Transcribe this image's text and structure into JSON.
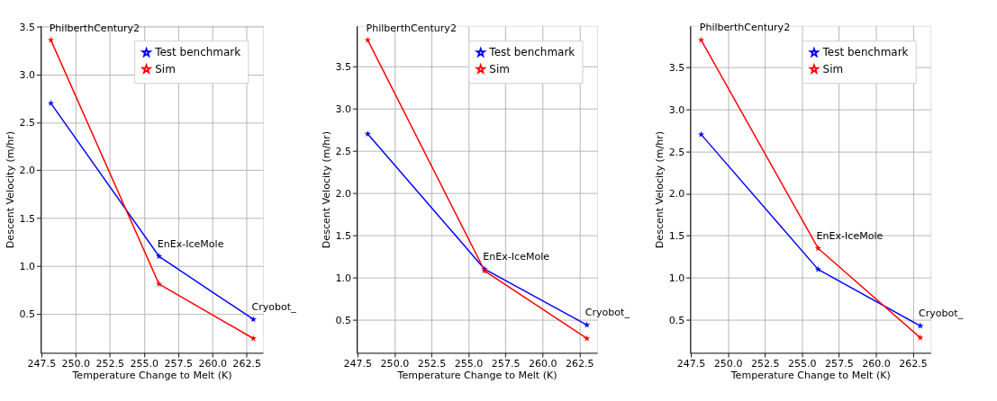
{
  "chart_data": [
    {
      "type": "line",
      "xlabel": "Temperature Change to Melt (K)",
      "ylabel": "Descent Velocity (m/hr)",
      "x": [
        248.2,
        256.1,
        263.0
      ],
      "series": [
        {
          "name": "Test benchmark",
          "color": "#0000ff",
          "values": [
            2.7,
            1.1,
            0.44
          ]
        },
        {
          "name": "Sim",
          "color": "#ff0000",
          "values": [
            3.36,
            0.81,
            0.24
          ]
        }
      ],
      "xlim": [
        247.45,
        263.7
      ],
      "ylim": [
        0.09,
        3.51
      ],
      "xticks": [
        {
          "value": 247.5,
          "label": "247.5"
        },
        {
          "value": 250,
          "label": "250.0"
        },
        {
          "value": 252.5,
          "label": "252.5"
        },
        {
          "value": 255,
          "label": "255.0"
        },
        {
          "value": 257.5,
          "label": "257.5"
        },
        {
          "value": 260,
          "label": "260.0"
        },
        {
          "value": 262.5,
          "label": "262.5"
        }
      ],
      "yticks": [
        0.5,
        {
          "value": 1,
          "label": "1.0"
        },
        1.5,
        {
          "value": 2,
          "label": "2.0"
        },
        2.5,
        {
          "value": 3,
          "label": "3.0"
        },
        3.5
      ],
      "annotations": [
        {
          "text": "PhilberthCentury2",
          "x": 248.2,
          "y": 3.36
        },
        {
          "text": "EnEx-IceMole",
          "x": 256.1,
          "y": 1.1
        },
        {
          "text": "Cryobot_",
          "x": 263.0,
          "y": 0.44
        }
      ],
      "grid": true,
      "legend": "top right",
      "marker": "star",
      "line_style": "solid"
    },
    {
      "type": "line",
      "xlabel": "Temperature Change to Melt (K)",
      "ylabel": "Descent Velocity (m/hr)",
      "x": [
        248.2,
        256.1,
        263.0
      ],
      "series": [
        {
          "name": "Test benchmark",
          "color": "#0000ff",
          "values": [
            2.7,
            1.1,
            0.44
          ]
        },
        {
          "name": "Sim",
          "color": "#ff0000",
          "values": [
            3.81,
            1.08,
            0.28
          ]
        }
      ],
      "xlim": [
        247.45,
        263.7
      ],
      "ylim": [
        0.11,
        3.98
      ],
      "xticks": [
        {
          "value": 247.5,
          "label": "247.5"
        },
        {
          "value": 250,
          "label": "250.0"
        },
        {
          "value": 252.5,
          "label": "252.5"
        },
        {
          "value": 255,
          "label": "255.0"
        },
        {
          "value": 257.5,
          "label": "257.5"
        },
        {
          "value": 260,
          "label": "260.0"
        },
        {
          "value": 262.5,
          "label": "262.5"
        }
      ],
      "yticks": [
        0.5,
        {
          "value": 1,
          "label": "1.0"
        },
        1.5,
        {
          "value": 2,
          "label": "2.0"
        },
        2.5,
        {
          "value": 3,
          "label": "3.0"
        },
        3.5
      ],
      "annotations": [
        {
          "text": "PhilberthCentury2",
          "x": 248.2,
          "y": 3.81
        },
        {
          "text": "EnEx-IceMole",
          "x": 256.1,
          "y": 1.1
        },
        {
          "text": "Cryobot_",
          "x": 263.0,
          "y": 0.44
        }
      ],
      "grid": true,
      "legend": "top right",
      "marker": "star",
      "line_style": "solid"
    },
    {
      "type": "line",
      "xlabel": "Temperature Change to Melt (K)",
      "ylabel": "Descent Velocity (m/hr)",
      "x": [
        248.2,
        256.1,
        263.0
      ],
      "series": [
        {
          "name": "Test benchmark",
          "color": "#0000ff",
          "values": [
            2.7,
            1.1,
            0.43
          ]
        },
        {
          "name": "Sim",
          "color": "#ff0000",
          "values": [
            3.82,
            1.35,
            0.29
          ]
        }
      ],
      "xlim": [
        247.45,
        263.7
      ],
      "ylim": [
        0.11,
        3.99
      ],
      "xticks": [
        {
          "value": 247.5,
          "label": "247.5"
        },
        {
          "value": 250,
          "label": "250.0"
        },
        {
          "value": 252.5,
          "label": "252.5"
        },
        {
          "value": 255,
          "label": "255.0"
        },
        {
          "value": 257.5,
          "label": "257.5"
        },
        {
          "value": 260,
          "label": "260.0"
        },
        {
          "value": 262.5,
          "label": "262.5"
        }
      ],
      "yticks": [
        0.5,
        {
          "value": 1,
          "label": "1.0"
        },
        1.5,
        {
          "value": 2,
          "label": "2.0"
        },
        2.5,
        {
          "value": 3,
          "label": "3.0"
        },
        3.5
      ],
      "annotations": [
        {
          "text": "PhilberthCentury2",
          "x": 248.2,
          "y": 3.82
        },
        {
          "text": "EnEx-IceMole",
          "x": 256.1,
          "y": 1.35
        },
        {
          "text": "Cryobot_",
          "x": 263.0,
          "y": 0.43
        }
      ],
      "grid": true,
      "legend": "top right",
      "marker": "star",
      "line_style": "solid"
    }
  ]
}
